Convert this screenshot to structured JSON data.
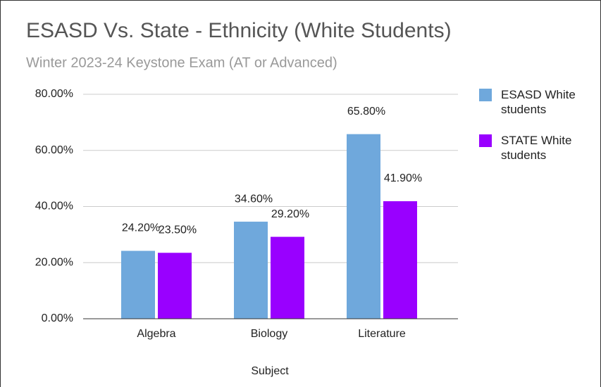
{
  "chart_data": {
    "type": "bar",
    "title": "ESASD Vs. State - Ethnicity (White Students)",
    "subtitle": "Winter 2023-24 Keystone Exam (AT or Advanced)",
    "x_label": "Subject",
    "categories": [
      "Algebra",
      "Biology",
      "Literature"
    ],
    "series": [
      {
        "name": "ESASD White students",
        "color": "#6fa8dc",
        "values": [
          24.2,
          34.6,
          65.8
        ],
        "value_labels": [
          "24.20%",
          "34.60%",
          "65.80%"
        ]
      },
      {
        "name": "STATE White students",
        "color": "#9900ff",
        "values": [
          23.5,
          29.2,
          41.9
        ],
        "value_labels": [
          "23.50%",
          "29.20%",
          "41.90%"
        ]
      }
    ],
    "ylim": [
      0,
      80
    ],
    "yticks": [
      {
        "value": 0,
        "label": "0.00%"
      },
      {
        "value": 20,
        "label": "20.00%"
      },
      {
        "value": 40,
        "label": "40.00%"
      },
      {
        "value": 60,
        "label": "60.00%"
      },
      {
        "value": 80,
        "label": "80.00%"
      }
    ],
    "grid": true,
    "legend": "right"
  }
}
